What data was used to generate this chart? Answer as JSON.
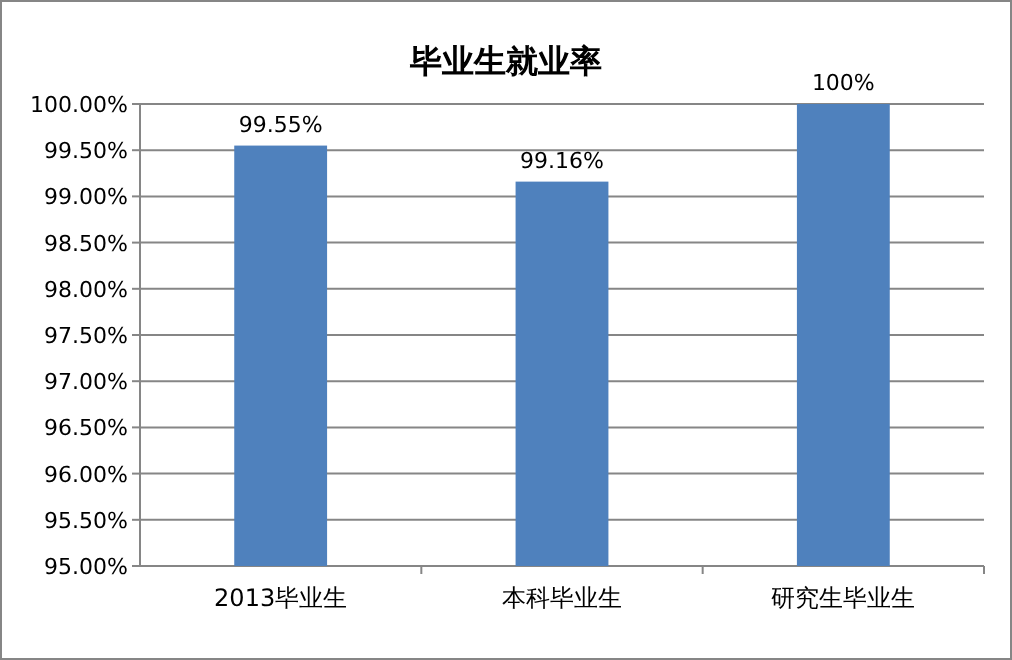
{
  "chart_data": {
    "type": "bar",
    "title": "毕业生就业率",
    "categories": [
      "2013毕业生",
      "本科毕业生",
      "研究生毕业生"
    ],
    "values": [
      99.55,
      99.16,
      100
    ],
    "value_labels": [
      "99.55%",
      "99.16%",
      "100%"
    ],
    "color": "#4f81bd",
    "ylim": [
      95,
      100
    ],
    "yticks": [
      {
        "value": 95,
        "label": "95.00%"
      },
      {
        "value": 95.5,
        "label": "95.50%"
      },
      {
        "value": 96,
        "label": "96.00%"
      },
      {
        "value": 96.5,
        "label": "96.50%"
      },
      {
        "value": 97,
        "label": "97.00%"
      },
      {
        "value": 97.5,
        "label": "97.50%"
      },
      {
        "value": 98,
        "label": "98.00%"
      },
      {
        "value": 98.5,
        "label": "98.50%"
      },
      {
        "value": 99,
        "label": "99.00%"
      },
      {
        "value": 99.5,
        "label": "99.50%"
      },
      {
        "value": 100,
        "label": "100.00%"
      }
    ],
    "grid": "y"
  }
}
